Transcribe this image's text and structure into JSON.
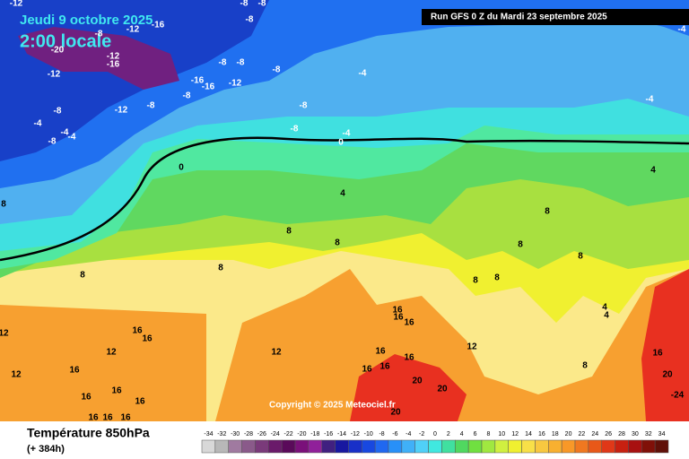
{
  "header": {
    "date": "Jeudi 9 octobre 2025",
    "time": "2:00 locale",
    "run": "Run GFS 0 Z du Mardi 23 septembre 2025"
  },
  "copyright": "Copyright © 2025 Meteociel.fr",
  "footer": {
    "title": "Température 850hPa",
    "lead": "(+ 384h)"
  },
  "scale": {
    "labels": [
      "-34",
      "-32",
      "-30",
      "-28",
      "-26",
      "-24",
      "-22",
      "-20",
      "-18",
      "-16",
      "-14",
      "-12",
      "-10",
      "-8",
      "-6",
      "-4",
      "-2",
      "0",
      "2",
      "4",
      "6",
      "8",
      "10",
      "12",
      "14",
      "16",
      "18",
      "20",
      "22",
      "24",
      "26",
      "28",
      "30",
      "32",
      "34"
    ],
    "colors": [
      "#d8d8d8",
      "#b8b8b8",
      "#a07aa0",
      "#8a5a8a",
      "#7a3a7a",
      "#6a1a6a",
      "#5a0a5a",
      "#7a107a",
      "#90209a",
      "#402080",
      "#1818a0",
      "#1830c8",
      "#1848e0",
      "#2068f0",
      "#2890f8",
      "#40b0f8",
      "#50d0f8",
      "#40e8e0",
      "#40e0a0",
      "#50d860",
      "#70e040",
      "#a0e840",
      "#d0f040",
      "#f0f030",
      "#f8e048",
      "#f8c840",
      "#f8b030",
      "#f89828",
      "#f07820",
      "#e85818",
      "#e03818",
      "#c82010",
      "#a81010",
      "#801008",
      "#601008"
    ]
  },
  "map_labels": [
    "-12",
    "-8",
    "-8",
    "-8",
    "-12",
    "-16",
    "-8",
    "-20",
    "-12",
    "-16",
    "-12",
    "-8",
    "-8",
    "-8",
    "-16",
    "-16",
    "-12",
    "-8",
    "-12",
    "-8",
    "-8",
    "-4",
    "-4",
    "-4",
    "-8",
    "-8",
    "-8",
    "-4",
    "0",
    "-4",
    "-4",
    "-4",
    "0",
    "4",
    "4",
    "8",
    "8",
    "8",
    "8",
    "8",
    "8",
    "8",
    "8",
    "8",
    "4",
    "4",
    "8",
    "16",
    "16",
    "16",
    "16",
    "16",
    "12",
    "12",
    "16",
    "16",
    "16",
    "16",
    "12",
    "16",
    "16",
    "12",
    "16",
    "16",
    "16",
    "16",
    "16",
    "16",
    "20",
    "20",
    "20",
    "20",
    "-24",
    "8",
    "12"
  ]
}
